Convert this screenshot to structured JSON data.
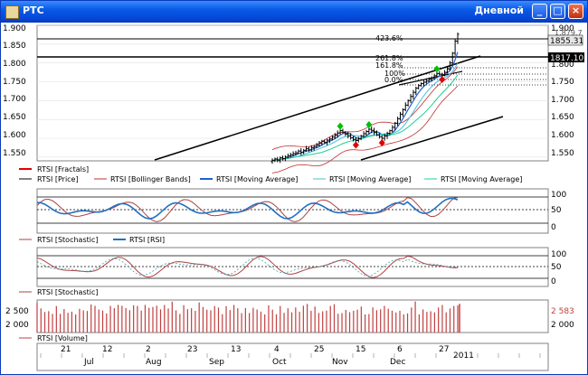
{
  "window": {
    "title": "РТС",
    "timeframe": "Дневной",
    "buttons": [
      "_",
      "□",
      "×"
    ]
  },
  "colors": {
    "price": "#000000",
    "fractal_up": "#00c000",
    "fractal_down": "#e00000",
    "bb": "#c03030",
    "ma_blue": "#2060d0",
    "ma_cyan": "#40c0e0",
    "ma_green": "#20d090",
    "stoch": "#b04040",
    "rsi": "#2070c0",
    "volume": "#c04040"
  },
  "price_pane": {
    "y_ticks": [
      "1.900",
      "1.850",
      "1.800",
      "1.750",
      "1.700",
      "1.650",
      "1.600",
      "1.550"
    ],
    "y_ticks_right": [
      "1.900",
      "1.850",
      "1.800",
      "1.750",
      "1.700",
      "1.650",
      "1.600",
      "1.550"
    ],
    "right_labels": [
      "1855.31",
      "1817.10",
      "1.879.7"
    ],
    "fib_labels": [
      "423.6%",
      "261.8%",
      "161.8%",
      "100%",
      "0.0%"
    ],
    "legend": [
      {
        "label": "RTSI [Fractals]",
        "color": "#e00000"
      },
      {
        "label": "RTSI [Price]",
        "color": "#000000"
      },
      {
        "label": "RTSI [Bollinger Bands]",
        "color": "#c03030"
      },
      {
        "label": "RTSI [Moving Average]",
        "color": "#2060d0"
      },
      {
        "label": "RTSI [Moving Average]",
        "color": "#40c0e0"
      },
      {
        "label": "RTSI [Moving Average]",
        "color": "#20d090"
      }
    ]
  },
  "stoch_rsi_pane": {
    "y_ticks": [
      "100",
      "50",
      "0"
    ],
    "legend": [
      {
        "label": "RTSI [Stochastic]",
        "color": "#b04040"
      },
      {
        "label": "RTSI [RSI]",
        "color": "#2070c0"
      }
    ]
  },
  "stoch_pane": {
    "y_ticks": [
      "100",
      "50",
      "0"
    ],
    "legend": [
      {
        "label": "RTSI [Stochastic]",
        "color": "#b04040"
      }
    ]
  },
  "volume_pane": {
    "y_ticks": [
      "2 500",
      "2 000"
    ],
    "y_ticks_right": [
      "2 583",
      "2 000"
    ],
    "legend": [
      {
        "label": "RTSI [Volume]",
        "color": "#c04040"
      }
    ]
  },
  "time_axis": {
    "days": [
      "21",
      "12",
      "2",
      "23",
      "13",
      "4",
      "25",
      "15",
      "6",
      "27"
    ],
    "months": [
      "Jul",
      "Aug",
      "Sep",
      "Oct",
      "Nov",
      "Dec"
    ],
    "year": "2011"
  },
  "chart_data": {
    "type": "line",
    "instrument": "RTSI",
    "series": [
      {
        "name": "RTSI [Price]",
        "values": [
          1541,
          1545,
          1542,
          1548,
          1546,
          1550,
          1553,
          1556,
          1559,
          1561,
          1566,
          1563,
          1568,
          1572,
          1569,
          1575,
          1578,
          1582,
          1587,
          1592,
          1589,
          1595,
          1598,
          1603,
          1608,
          1614,
          1620,
          1616,
          1611,
          1606,
          1601,
          1597,
          1594,
          1599,
          1605,
          1612,
          1618,
          1624,
          1621,
          1615,
          1609,
          1604,
          1600,
          1606,
          1613,
          1620,
          1629,
          1640,
          1652,
          1664,
          1676,
          1688,
          1700,
          1711,
          1722,
          1733,
          1740,
          1745,
          1749,
          1752,
          1756,
          1760,
          1766,
          1772,
          1770,
          1768,
          1775,
          1784,
          1800,
          1826,
          1858,
          1876
        ]
      }
    ],
    "ylim": [
      1540,
      1900
    ],
    "secondary": {
      "stochastic_rsi": {
        "ylim": [
          0,
          100
        ],
        "levels": [
          80,
          20
        ]
      },
      "stochastic": {
        "ylim": [
          0,
          100
        ],
        "levels": [
          80,
          20
        ]
      },
      "volume": {
        "ylim": [
          1700,
          2700
        ],
        "last": 2583
      }
    }
  }
}
